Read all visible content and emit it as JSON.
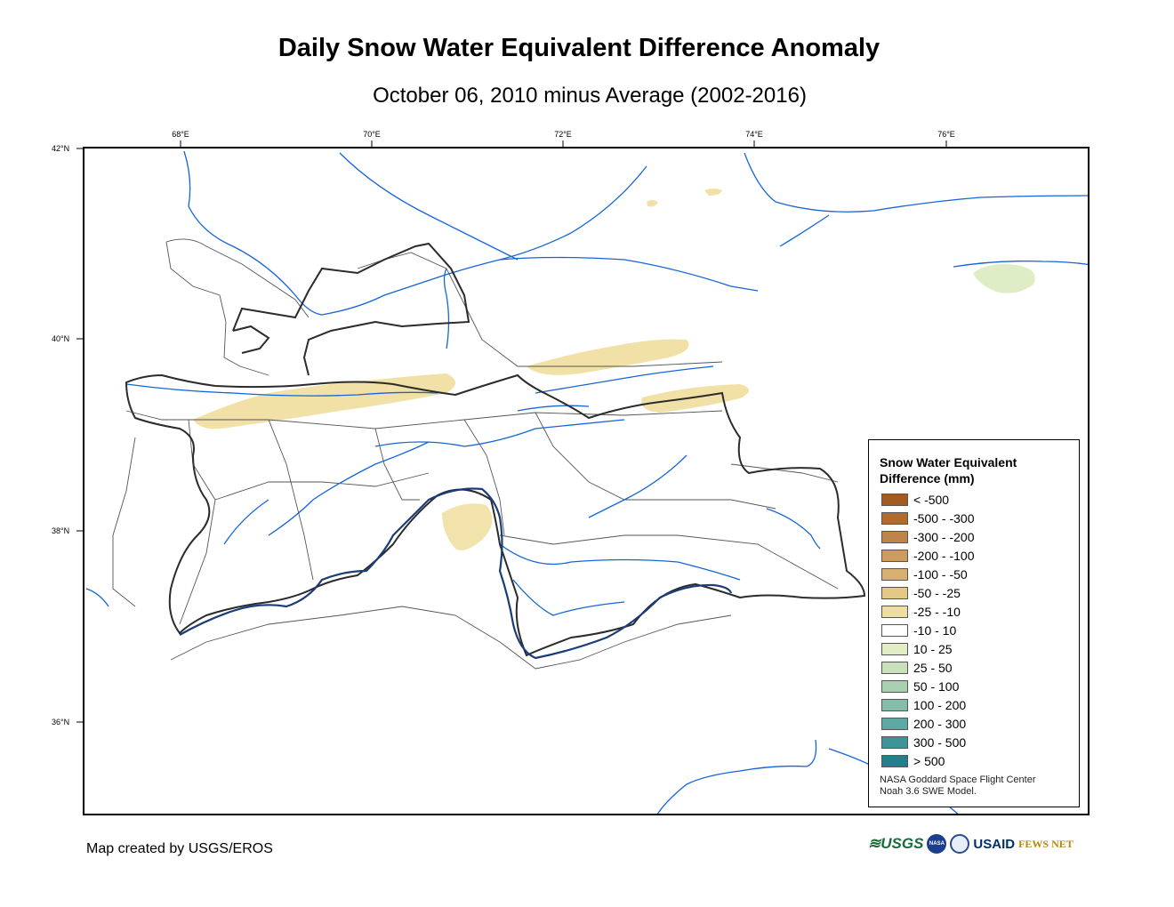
{
  "header": {
    "title": "Daily Snow Water Equivalent Difference Anomaly",
    "subtitle": "October 06, 2010 minus Average (2002-2016)"
  },
  "map": {
    "longitude_ticks": [
      "68°E",
      "70°E",
      "72°E",
      "74°E",
      "76°E"
    ],
    "latitude_ticks": [
      "42°N",
      "40°N",
      "38°N",
      "36°N"
    ],
    "colors": {
      "country_border": "#2b2b2b",
      "province_border": "#555555",
      "river": "#1565d8",
      "snow_deficit": "#eedc96",
      "snow_surplus": "#dcebc0"
    }
  },
  "legend": {
    "title": "Snow Water Equivalent Difference (mm)",
    "items": [
      {
        "label": "< -500",
        "color": "#a35a1e"
      },
      {
        "label": "-500 - -300",
        "color": "#b06c30"
      },
      {
        "label": "-300 - -200",
        "color": "#bf8447"
      },
      {
        "label": "-200 - -100",
        "color": "#cc9b5d"
      },
      {
        "label": "-100 - -50",
        "color": "#d7af73"
      },
      {
        "label": "-50 - -25",
        "color": "#e4c888"
      },
      {
        "label": "-25 - -10",
        "color": "#efdea2"
      },
      {
        "label": "-10 - 10",
        "color": "#ffffff"
      },
      {
        "label": "10 - 25",
        "color": "#e2edc6"
      },
      {
        "label": "25 - 50",
        "color": "#c9e0bb"
      },
      {
        "label": "50 - 100",
        "color": "#a8d0b1"
      },
      {
        "label": "100 - 200",
        "color": "#84bdaa"
      },
      {
        "label": "200 - 300",
        "color": "#5ea9a3"
      },
      {
        "label": "300 - 500",
        "color": "#3f949a"
      },
      {
        "label": "> 500",
        "color": "#237f8c"
      }
    ],
    "credit_line1": "NASA Goddard Space Flight Center",
    "credit_line2": "Noah 3.6 SWE Model."
  },
  "footer": {
    "credit": "Map created by USGS/EROS",
    "logos": {
      "usgs": "≋USGS",
      "nasa": "NASA",
      "usaid": "USAID",
      "fews": "FEWS NET"
    }
  }
}
